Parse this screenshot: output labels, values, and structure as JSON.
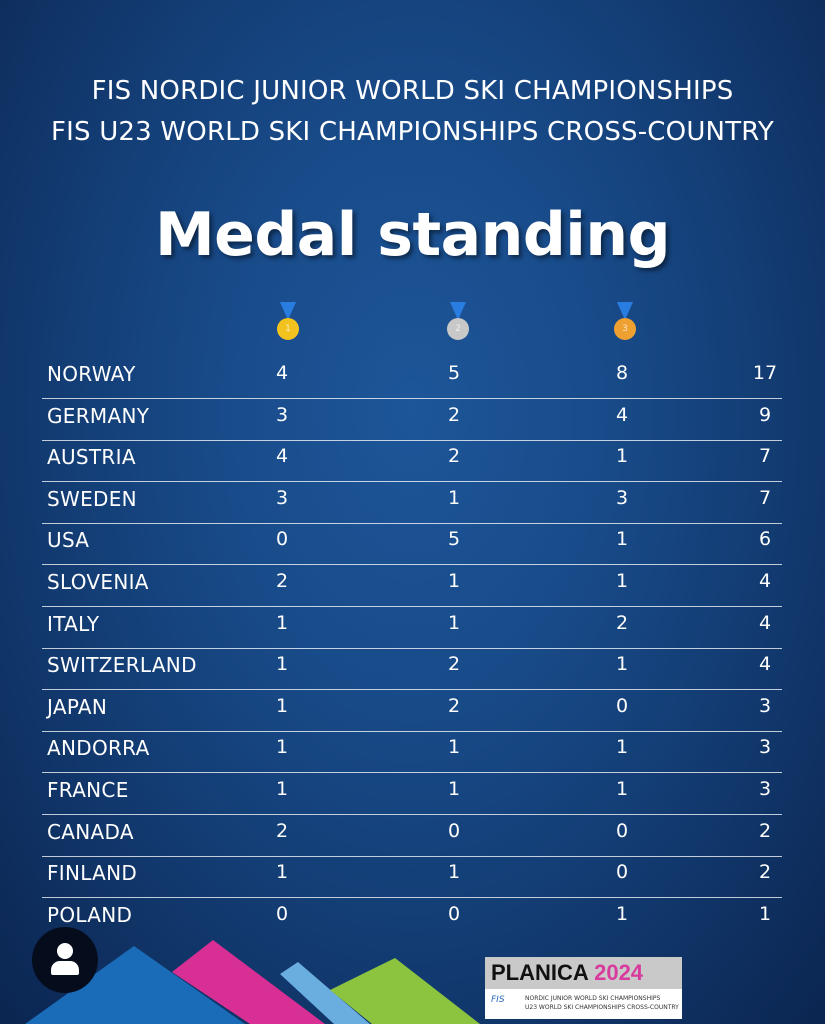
{
  "header": {
    "line1": "FIS  NORDIC JUNIOR WORLD SKI CHAMPIONSHIPS",
    "line2": "FIS U23 WORLD SKI CHAMPIONSHIPS CROSS-COUNTRY"
  },
  "title": "Medal standing",
  "medals": [
    {
      "name": "gold-medal-icon",
      "color": "#f2c31f",
      "label": "1"
    },
    {
      "name": "silver-medal-icon",
      "color": "#c8c8c8",
      "label": "2"
    },
    {
      "name": "bronze-medal-icon",
      "color": "#eea030",
      "label": "3"
    }
  ],
  "table": [
    [
      "NORWAY",
      4,
      5,
      8,
      17
    ],
    [
      "GERMANY",
      3,
      2,
      4,
      9
    ],
    [
      "AUSTRIA",
      4,
      2,
      1,
      7
    ],
    [
      "SWEDEN",
      3,
      1,
      3,
      7
    ],
    [
      "USA",
      0,
      5,
      1,
      6
    ],
    [
      "SLOVENIA",
      2,
      1,
      1,
      4
    ],
    [
      "ITALY",
      1,
      1,
      2,
      4
    ],
    [
      "SWITZERLAND",
      1,
      2,
      1,
      4
    ],
    [
      "JAPAN",
      1,
      2,
      0,
      3
    ],
    [
      "ANDORRA",
      1,
      1,
      1,
      3
    ],
    [
      "FRANCE",
      1,
      1,
      1,
      3
    ],
    [
      "CANADA",
      2,
      0,
      0,
      2
    ],
    [
      "FINLAND",
      1,
      1,
      0,
      2
    ],
    [
      "POLAND",
      0,
      0,
      1,
      1
    ]
  ],
  "logo": {
    "brand": "PLANICA",
    "year": "2024",
    "fis": "FIS",
    "sub1": "NORDIC JUNIOR WORLD SKI CHAMPIONSHIPS",
    "sub2": "U23 WORLD SKI CHAMPIONSHIPS CROSS-COUNTRY"
  },
  "colors": {
    "blue": "#1a6bb8",
    "pink": "#d82f94",
    "lightblue": "#6aaee0",
    "green": "#8cc43f"
  }
}
